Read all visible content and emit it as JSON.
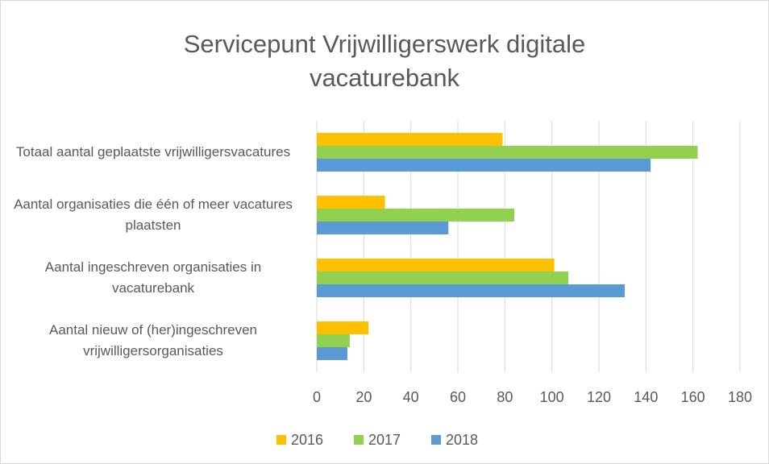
{
  "chart_data": {
    "type": "hbar",
    "title": "Servicepunt Vrijwilligerswerk digitale vacaturebank",
    "categories": [
      "Totaal aantal geplaatste vrijwilligersvacatures",
      "Aantal organisaties die één of meer vacatures plaatsten",
      "Aantal ingeschreven organisaties in vacaturebank",
      "Aantal nieuw of (her)ingeschreven vrijwilligersorganisaties"
    ],
    "series": [
      {
        "name": "2016",
        "color": "#ffc000",
        "values": [
          79,
          29,
          101,
          22
        ]
      },
      {
        "name": "2017",
        "color": "#92d050",
        "values": [
          162,
          84,
          107,
          14
        ]
      },
      {
        "name": "2018",
        "color": "#5b9bd5",
        "values": [
          142,
          56,
          131,
          13
        ]
      }
    ],
    "xlim": [
      0,
      180
    ],
    "xticks": [
      0,
      20,
      40,
      60,
      80,
      100,
      120,
      140,
      160,
      180
    ],
    "grid": true,
    "legend": "bottom"
  }
}
